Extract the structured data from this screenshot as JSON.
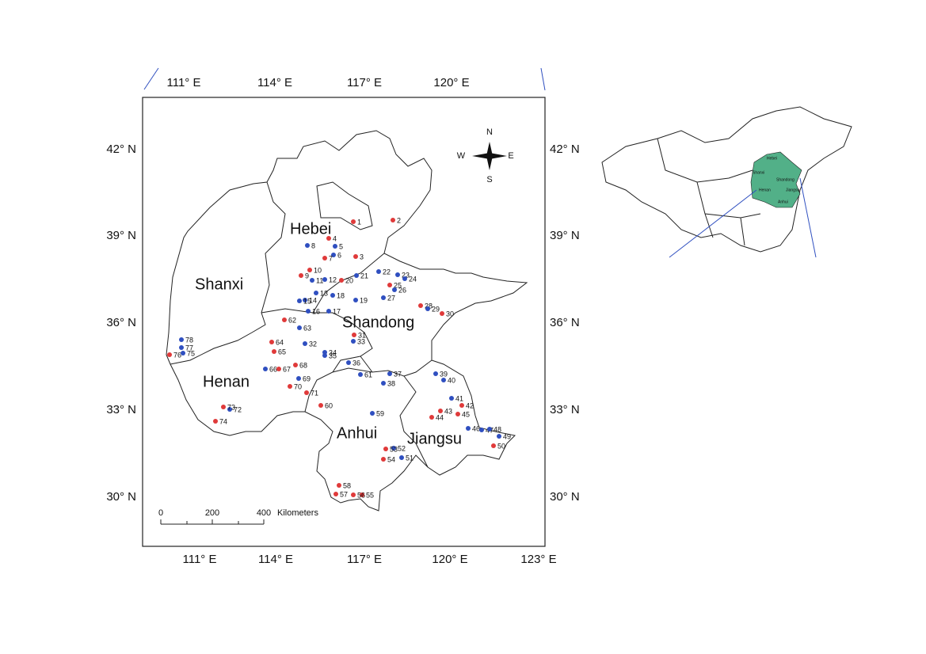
{
  "map": {
    "lon_top": [
      "111° E",
      "114° E",
      "117° E",
      "120° E"
    ],
    "lon_bottom": [
      "111° E",
      "114° E",
      "117° E",
      "120° E",
      "123° E"
    ],
    "lat_left": [
      "42° N",
      "39° N",
      "36° N",
      "33° N",
      "30° N"
    ],
    "lat_right": [
      "42° N",
      "39° N",
      "36° N",
      "33° N",
      "30° N"
    ],
    "provinces": [
      "Hebei",
      "Shanxi",
      "Shandong",
      "Henan",
      "Anhui",
      "Jiangsu"
    ],
    "compass": {
      "n": "N",
      "s": "S",
      "e": "E",
      "w": "W"
    },
    "scale": {
      "ticks": [
        "0",
        "200",
        "400"
      ],
      "unit": "Kilometers"
    },
    "inset_labels": [
      "Hebei",
      "Shanxi",
      "Shandong",
      "Henan",
      "Jiangsu",
      "Anhui"
    ],
    "sites": [
      {
        "label": "1",
        "color": "red"
      },
      {
        "label": "2",
        "color": "red"
      },
      {
        "label": "3",
        "color": "red"
      },
      {
        "label": "4",
        "color": "red"
      },
      {
        "label": "5",
        "color": "blue"
      },
      {
        "label": "6",
        "color": "blue"
      },
      {
        "label": "7",
        "color": "red"
      },
      {
        "label": "8",
        "color": "blue"
      },
      {
        "label": "9",
        "color": "red"
      },
      {
        "label": "10",
        "color": "red"
      },
      {
        "label": "11",
        "color": "blue"
      },
      {
        "label": "12",
        "color": "blue"
      },
      {
        "label": "13",
        "color": "blue"
      },
      {
        "label": "14",
        "color": "blue"
      },
      {
        "label": "15",
        "color": "blue"
      },
      {
        "label": "16",
        "color": "blue"
      },
      {
        "label": "17",
        "color": "blue"
      },
      {
        "label": "18",
        "color": "blue"
      },
      {
        "label": "19",
        "color": "blue"
      },
      {
        "label": "20",
        "color": "red"
      },
      {
        "label": "21",
        "color": "blue"
      },
      {
        "label": "22",
        "color": "blue"
      },
      {
        "label": "23",
        "color": "blue"
      },
      {
        "label": "24",
        "color": "blue"
      },
      {
        "label": "25",
        "color": "red"
      },
      {
        "label": "26",
        "color": "blue"
      },
      {
        "label": "27",
        "color": "blue"
      },
      {
        "label": "28",
        "color": "red"
      },
      {
        "label": "29",
        "color": "blue"
      },
      {
        "label": "30",
        "color": "red"
      },
      {
        "label": "31",
        "color": "red"
      },
      {
        "label": "32",
        "color": "blue"
      },
      {
        "label": "33",
        "color": "blue"
      },
      {
        "label": "34",
        "color": "blue"
      },
      {
        "label": "35",
        "color": "blue"
      },
      {
        "label": "36",
        "color": "blue"
      },
      {
        "label": "37",
        "color": "blue"
      },
      {
        "label": "38",
        "color": "blue"
      },
      {
        "label": "39",
        "color": "blue"
      },
      {
        "label": "40",
        "color": "blue"
      },
      {
        "label": "41",
        "color": "blue"
      },
      {
        "label": "42",
        "color": "red"
      },
      {
        "label": "43",
        "color": "red"
      },
      {
        "label": "44",
        "color": "red"
      },
      {
        "label": "45",
        "color": "red"
      },
      {
        "label": "46",
        "color": "blue"
      },
      {
        "label": "47",
        "color": "blue"
      },
      {
        "label": "48",
        "color": "blue"
      },
      {
        "label": "49",
        "color": "blue"
      },
      {
        "label": "50",
        "color": "red"
      },
      {
        "label": "51",
        "color": "blue"
      },
      {
        "label": "52",
        "color": "blue"
      },
      {
        "label": "53",
        "color": "red"
      },
      {
        "label": "54",
        "color": "red"
      },
      {
        "label": "55",
        "color": "red"
      },
      {
        "label": "56",
        "color": "red"
      },
      {
        "label": "57",
        "color": "red"
      },
      {
        "label": "58",
        "color": "red"
      },
      {
        "label": "59",
        "color": "blue"
      },
      {
        "label": "60",
        "color": "red"
      },
      {
        "label": "61",
        "color": "blue"
      },
      {
        "label": "62",
        "color": "red"
      },
      {
        "label": "63",
        "color": "blue"
      },
      {
        "label": "64",
        "color": "red"
      },
      {
        "label": "65",
        "color": "red"
      },
      {
        "label": "66",
        "color": "blue"
      },
      {
        "label": "67",
        "color": "red"
      },
      {
        "label": "68",
        "color": "red"
      },
      {
        "label": "69",
        "color": "blue"
      },
      {
        "label": "70",
        "color": "red"
      },
      {
        "label": "71",
        "color": "red"
      },
      {
        "label": "72",
        "color": "blue"
      },
      {
        "label": "73",
        "color": "red"
      },
      {
        "label": "74",
        "color": "red"
      },
      {
        "label": "75",
        "color": "blue"
      },
      {
        "label": "76",
        "color": "red"
      },
      {
        "label": "77",
        "color": "blue"
      },
      {
        "label": "78",
        "color": "blue"
      }
    ]
  }
}
